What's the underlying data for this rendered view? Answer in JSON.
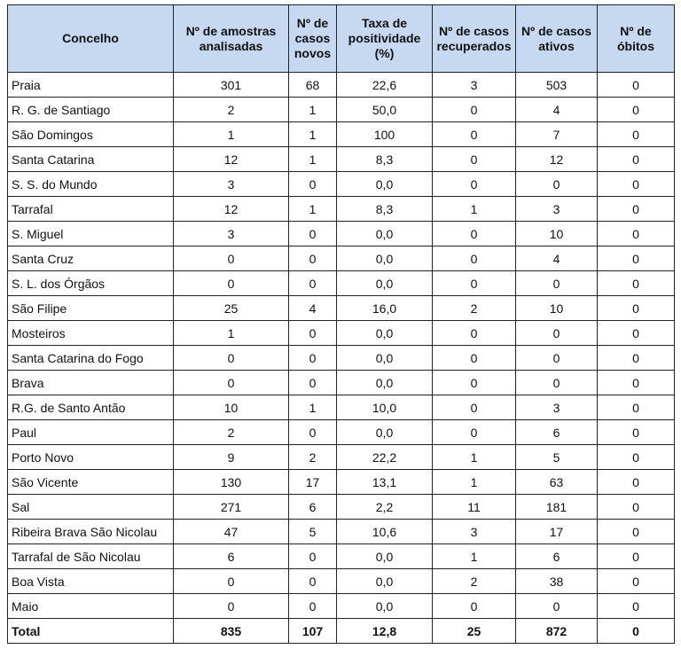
{
  "table": {
    "header": [
      "Concelho",
      "Nº de amostras analisadas",
      "Nº de casos novos",
      "Taxa de positividade (%)",
      "Nº de casos recuperados",
      "Nº de casos ativos",
      "Nº de óbitos"
    ],
    "rows": [
      [
        "Praia",
        "301",
        "68",
        "22,6",
        "3",
        "503",
        "0"
      ],
      [
        "R. G. de Santiago",
        "2",
        "1",
        "50,0",
        "0",
        "4",
        "0"
      ],
      [
        "São Domingos",
        "1",
        "1",
        "100",
        "0",
        "7",
        "0"
      ],
      [
        "Santa Catarina",
        "12",
        "1",
        "8,3",
        "0",
        "12",
        "0"
      ],
      [
        "S. S. do Mundo",
        "3",
        "0",
        "0,0",
        "0",
        "0",
        "0"
      ],
      [
        "Tarrafal",
        "12",
        "1",
        "8,3",
        "1",
        "3",
        "0"
      ],
      [
        "S. Miguel",
        "3",
        "0",
        "0,0",
        "0",
        "10",
        "0"
      ],
      [
        "Santa Cruz",
        "0",
        "0",
        "0,0",
        "0",
        "4",
        "0"
      ],
      [
        "S. L. dos Órgãos",
        "0",
        "0",
        "0,0",
        "0",
        "0",
        "0"
      ],
      [
        "São Filipe",
        "25",
        "4",
        "16,0",
        "2",
        "10",
        "0"
      ],
      [
        "Mosteiros",
        "1",
        "0",
        "0,0",
        "0",
        "0",
        "0"
      ],
      [
        "Santa Catarina do Fogo",
        "0",
        "0",
        "0,0",
        "0",
        "0",
        "0"
      ],
      [
        "Brava",
        "0",
        "0",
        "0,0",
        "0",
        "0",
        "0"
      ],
      [
        "R.G. de Santo Antão",
        "10",
        "1",
        "10,0",
        "0",
        "3",
        "0"
      ],
      [
        "Paul",
        "2",
        "0",
        "0,0",
        "0",
        "6",
        "0"
      ],
      [
        "Porto Novo",
        "9",
        "2",
        "22,2",
        "1",
        "5",
        "0"
      ],
      [
        "São Vicente",
        "130",
        "17",
        "13,1",
        "1",
        "63",
        "0"
      ],
      [
        "Sal",
        "271",
        "6",
        "2,2",
        "11",
        "181",
        "0"
      ],
      [
        "Ribeira Brava São Nicolau",
        "47",
        "5",
        "10,6",
        "3",
        "17",
        "0"
      ],
      [
        "Tarrafal de São Nicolau",
        "6",
        "0",
        "0,0",
        "1",
        "6",
        "0"
      ],
      [
        "Boa Vista",
        "0",
        "0",
        "0,0",
        "2",
        "38",
        "0"
      ],
      [
        "Maio",
        "0",
        "0",
        "0,0",
        "0",
        "0",
        "0"
      ]
    ],
    "total": [
      "Total",
      "835",
      "107",
      "12,8",
      "25",
      "872",
      "0"
    ]
  }
}
